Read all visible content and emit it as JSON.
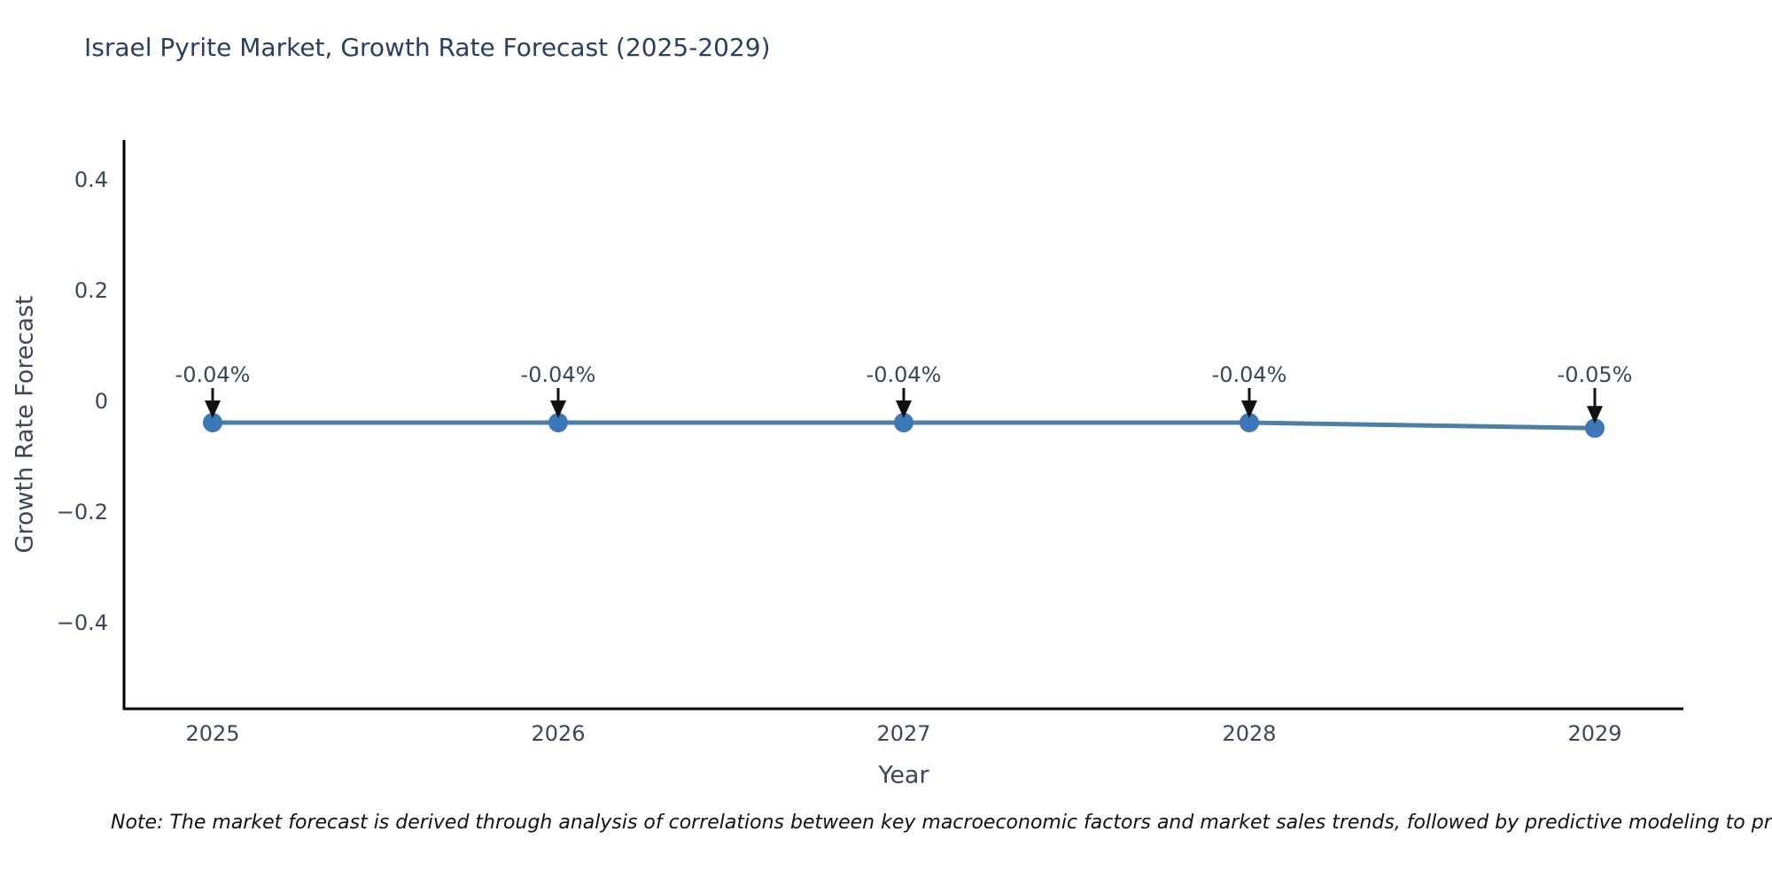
{
  "title": "Israel Pyrite Market, Growth Rate Forecast (2025-2029)",
  "note": "Note: The market forecast is derived through analysis of correlations between key macroeconomic factors and market sales trends, followed by predictive modeling to project future sales.",
  "colors": {
    "title_text": "#2a3f5f",
    "axis_text": "#3c465a",
    "axis_line": "#000000",
    "line": "#4c7fa8",
    "marker": "#3c78b8",
    "arrow": "#111111",
    "background": "#ffffff"
  },
  "chart_data": {
    "type": "line",
    "title": "Israel Pyrite Market, Growth Rate Forecast (2025-2029)",
    "xlabel": "Year",
    "ylabel": "Growth Rate Forecast",
    "x": [
      2025,
      2026,
      2027,
      2028,
      2029
    ],
    "values": [
      -0.04,
      -0.04,
      -0.04,
      -0.04,
      -0.05
    ],
    "point_labels": [
      "-0.04%",
      "-0.04%",
      "-0.04%",
      "-0.04%",
      "-0.05%"
    ],
    "yticks": {
      "values": [
        0.4,
        0.2,
        0,
        -0.2,
        -0.4
      ],
      "labels": [
        "0.4",
        "0.2",
        "0",
        "−0.2",
        "−0.4"
      ]
    },
    "xtick_labels": [
      "2025",
      "2026",
      "2027",
      "2028",
      "2029"
    ],
    "ylim": [
      -0.5568,
      0.4704
    ],
    "grid": false,
    "legend": "none",
    "marker_style": "circle",
    "annotation_arrows": true
  }
}
